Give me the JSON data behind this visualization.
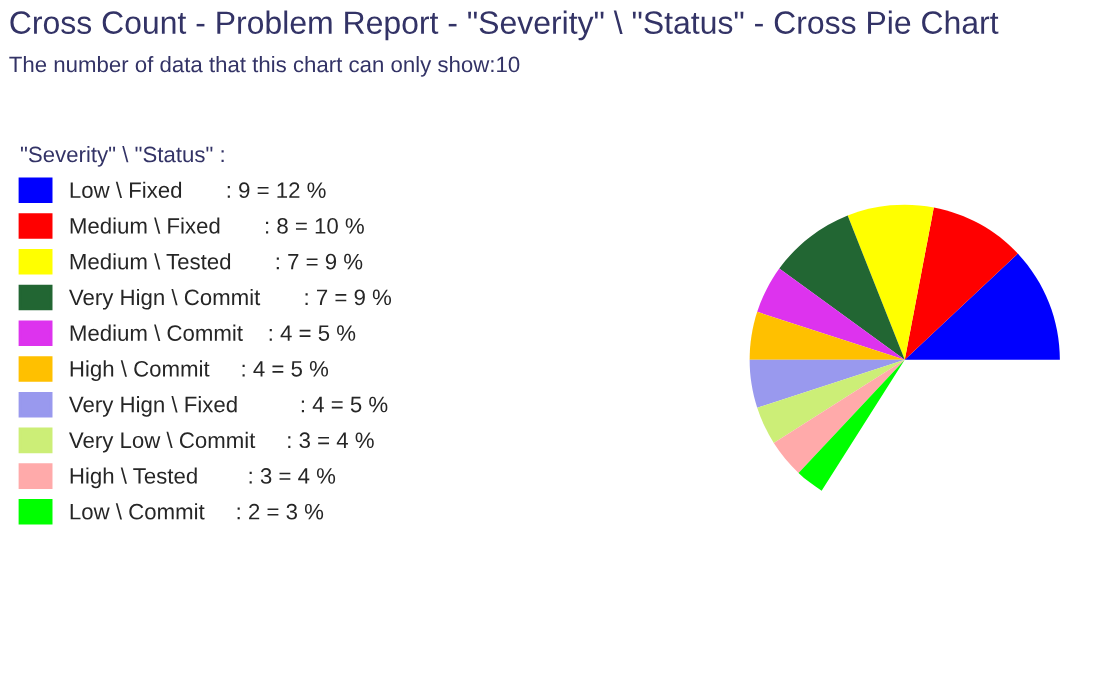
{
  "chart_data": {
    "type": "pie",
    "title": "Cross Count - Problem Report - \"Severity\" \\ \"Status\" - Cross Pie Chart",
    "subtitle": "The number of data that this chart can only show:10",
    "legend_title": "\"Severity\" \\ \"Status\" :",
    "legend": "left",
    "categories": [
      "Low \\ Fixed       : 9 = 12 %",
      "Medium \\ Fixed       : 8 = 10 %",
      "Medium \\ Tested       : 7 = 9 %",
      "Very Hign \\ Commit       : 7 = 9 %",
      "Medium \\ Commit    : 4 = 5 %",
      "High \\ Commit     : 4 = 5 %",
      "Very Hign \\ Fixed          : 4 = 5 %",
      "Very Low \\ Commit     : 3 = 4 %",
      "High \\ Tested        : 3 = 4 %",
      "Low \\ Commit     : 2 = 3 %"
    ],
    "values": [
      12,
      10,
      9,
      9,
      5,
      5,
      5,
      4,
      4,
      3
    ],
    "colors": [
      "#0000ff",
      "#ff0000",
      "#ffff00",
      "#226633",
      "#dd33ee",
      "#ffc000",
      "#9999ee",
      "#ccee77",
      "#ffaaaa",
      "#00ff00"
    ]
  }
}
